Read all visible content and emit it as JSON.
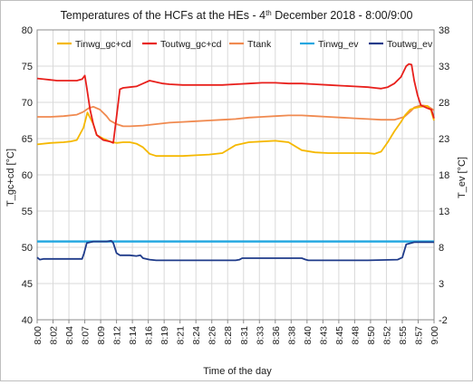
{
  "chart_data": {
    "type": "line",
    "title": {
      "text": "Temperatures of the HCFs at the HEs - 4",
      "superscript": "th",
      "rest": " December 2018 - 8:00/9:00"
    },
    "xlabel": "Time of the day",
    "ylabel": "T_gc+cd [°C]",
    "ylabel2": "T_ev [°C]",
    "ylim": [
      40,
      80
    ],
    "y2lim": [
      -2,
      38
    ],
    "yticks": [
      "40",
      "45",
      "50",
      "55",
      "60",
      "65",
      "70",
      "75",
      "80"
    ],
    "y2ticks": [
      "-2",
      "3",
      "8",
      "13",
      "18",
      "23",
      "28",
      "33",
      "38"
    ],
    "xlim": [
      0,
      60
    ],
    "xticks": [
      "8:00",
      "8:02",
      "8:04",
      "8:07",
      "8:09",
      "8:12",
      "8:14",
      "8:16",
      "8:19",
      "8:21",
      "8:24",
      "8:26",
      "8:28",
      "8:31",
      "8:33",
      "8:36",
      "8:38",
      "8:40",
      "8:43",
      "8:45",
      "8:48",
      "8:50",
      "8:52",
      "8:55",
      "8:57",
      "9:00"
    ],
    "grid": true,
    "legend": "top",
    "series": [
      {
        "name": "Tinwg_gc+cd",
        "axis": "left",
        "color": "#f5b800",
        "x": [
          0,
          2,
          4,
          5,
          6,
          7,
          7.6,
          8.5,
          9,
          10,
          11,
          12,
          13,
          14,
          15,
          16,
          17,
          18,
          19,
          20,
          22,
          24,
          26,
          28,
          30,
          31,
          32,
          34,
          36,
          37,
          38,
          40,
          42,
          44,
          46,
          48,
          50,
          51,
          52,
          53,
          54,
          55,
          55.6,
          56.4,
          57,
          58,
          59,
          59.5,
          60
        ],
        "y": [
          64.2,
          64.4,
          64.5,
          64.6,
          64.8,
          66.5,
          68.6,
          67,
          65.5,
          65,
          64.6,
          64.4,
          64.5,
          64.5,
          64.3,
          63.8,
          62.9,
          62.6,
          62.6,
          62.6,
          62.6,
          62.7,
          62.8,
          63,
          64.1,
          64.3,
          64.5,
          64.6,
          64.7,
          64.6,
          64.5,
          63.4,
          63.1,
          63,
          63,
          63,
          63,
          62.9,
          63.2,
          64.5,
          66,
          67.3,
          68.2,
          69,
          69.2,
          69.4,
          69.5,
          69,
          67.5
        ]
      },
      {
        "name": "Toutwg_gc+cd",
        "axis": "left",
        "color": "#e8201c",
        "x": [
          0,
          1,
          2,
          3,
          4,
          5,
          6,
          6.8,
          7.2,
          7.5,
          8,
          8.5,
          9,
          10,
          11,
          11.5,
          12,
          12.5,
          13,
          14,
          15,
          16,
          17,
          18,
          19,
          20,
          22,
          24,
          26,
          28,
          30,
          32,
          34,
          36,
          38,
          40,
          42,
          44,
          46,
          48,
          50,
          51,
          52,
          53,
          54,
          55,
          55.8,
          56.2,
          56.6,
          57,
          57.5,
          58,
          59,
          59.6,
          60
        ],
        "y": [
          73.3,
          73.2,
          73.1,
          73,
          73,
          73,
          73,
          73.2,
          73.7,
          72,
          69,
          67,
          65.5,
          64.8,
          64.6,
          64.4,
          68,
          71.8,
          72,
          72.1,
          72.2,
          72.6,
          73,
          72.8,
          72.6,
          72.5,
          72.4,
          72.4,
          72.4,
          72.4,
          72.5,
          72.6,
          72.7,
          72.7,
          72.6,
          72.6,
          72.5,
          72.4,
          72.3,
          72.2,
          72.1,
          72,
          71.9,
          72.1,
          72.6,
          73.5,
          75,
          75.3,
          75.2,
          73,
          71,
          69.6,
          69.2,
          69,
          67.8
        ]
      },
      {
        "name": "Ttank",
        "axis": "left",
        "color": "#f08a50",
        "x": [
          0,
          2,
          4,
          6,
          7,
          7.8,
          8.5,
          9.5,
          10.5,
          11,
          12,
          13,
          14,
          16,
          18,
          20,
          22,
          24,
          26,
          28,
          30,
          32,
          34,
          36,
          38,
          40,
          42,
          44,
          46,
          48,
          50,
          52,
          54,
          55.5,
          56.5,
          57,
          58,
          59,
          60
        ],
        "y": [
          68,
          68,
          68.1,
          68.3,
          68.7,
          69.2,
          69.4,
          69,
          68.1,
          67.5,
          67,
          66.7,
          66.7,
          66.8,
          67,
          67.2,
          67.3,
          67.4,
          67.5,
          67.6,
          67.7,
          67.9,
          68,
          68.1,
          68.2,
          68.2,
          68.1,
          68,
          67.9,
          67.8,
          67.7,
          67.6,
          67.6,
          68,
          68.8,
          69.3,
          69.6,
          69.5,
          68.9
        ]
      },
      {
        "name": "Tinwg_ev",
        "axis": "right",
        "color": "#1fa6e0",
        "x": [
          0,
          60
        ],
        "y": [
          8.8,
          8.8
        ]
      },
      {
        "name": "Toutwg_ev",
        "axis": "right",
        "color": "#1f3b8a",
        "x": [
          0,
          0.4,
          1,
          5,
          6.8,
          7.1,
          7.5,
          8.5,
          9.5,
          10.5,
          11.2,
          11.5,
          12,
          12.5,
          12.8,
          14,
          15,
          15.6,
          16,
          17,
          18,
          20,
          25,
          30,
          30.6,
          31,
          35,
          40,
          40.6,
          41,
          45,
          50,
          54.5,
          55.2,
          55.8,
          57,
          60
        ],
        "y": [
          6.6,
          6.3,
          6.4,
          6.4,
          6.4,
          7.2,
          8.6,
          8.8,
          8.8,
          8.8,
          8.9,
          8.6,
          7.2,
          6.9,
          6.9,
          6.9,
          6.8,
          6.9,
          6.5,
          6.3,
          6.2,
          6.2,
          6.2,
          6.2,
          6.3,
          6.5,
          6.5,
          6.5,
          6.3,
          6.2,
          6.2,
          6.2,
          6.3,
          6.6,
          8.4,
          8.7,
          8.7
        ]
      }
    ]
  }
}
